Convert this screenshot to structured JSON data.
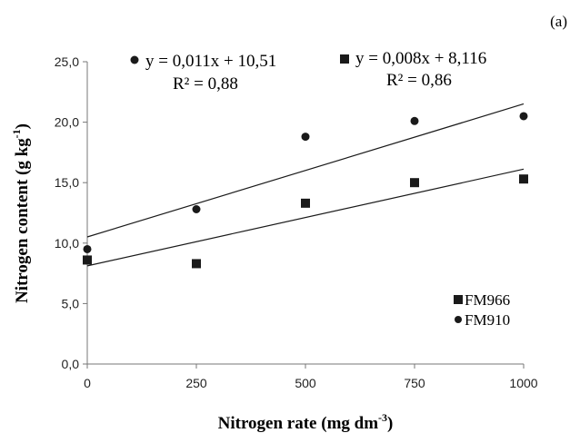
{
  "chart_data": {
    "type": "scatter",
    "panel_label": "(a)",
    "xlabel": {
      "text": "Nitrogen rate  (mg dm",
      "sup": "-3",
      "tail": ")"
    },
    "ylabel": {
      "text": "Nitrogen content (g kg",
      "sup": "-1",
      "tail": ")"
    },
    "xlim": [
      0,
      1000
    ],
    "ylim": [
      0,
      25
    ],
    "x_ticks": [
      0,
      250,
      500,
      750,
      1000
    ],
    "x_tick_labels": [
      "0",
      "250",
      "500",
      "750",
      "1000"
    ],
    "y_ticks": [
      0,
      5,
      10,
      15,
      20,
      25
    ],
    "y_tick_labels": [
      "0,0",
      "5,0",
      "10,0",
      "15,0",
      "20,0",
      "25,0"
    ],
    "legend_position": "bottom-right",
    "series": [
      {
        "name": "FM966",
        "marker": "square",
        "color": "#1a1a1a",
        "x": [
          0,
          250,
          500,
          750,
          1000
        ],
        "y": [
          8.6,
          8.3,
          13.3,
          15.0,
          15.3
        ],
        "trend": {
          "slope": 0.008,
          "intercept": 8.116
        },
        "equation": "y = 0,008x + 8,116",
        "r2": "R² = 0,86"
      },
      {
        "name": "FM910",
        "marker": "circle",
        "color": "#1a1a1a",
        "x": [
          0,
          250,
          500,
          750,
          1000
        ],
        "y": [
          9.5,
          12.8,
          18.8,
          20.1,
          20.5
        ],
        "trend": {
          "slope": 0.011,
          "intercept": 10.51
        },
        "equation": "y = 0,011x + 10,51",
        "r2": "R² = 0,88"
      }
    ]
  }
}
